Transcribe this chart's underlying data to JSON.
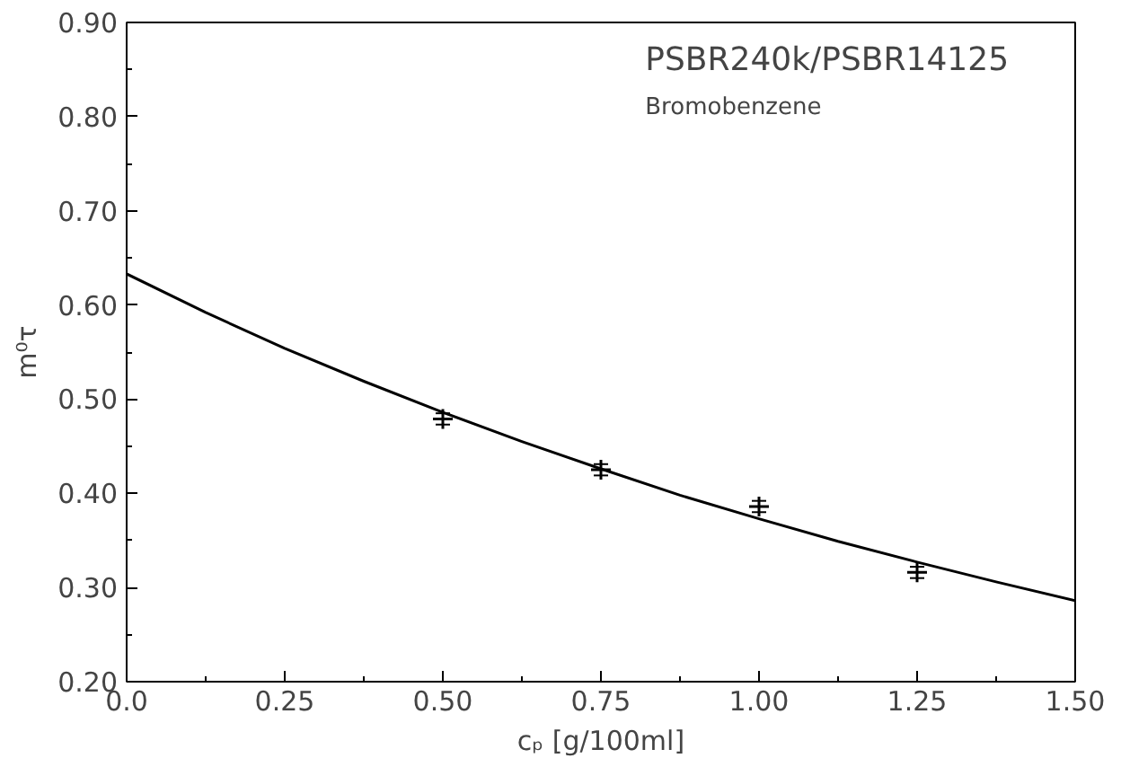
{
  "chart_data": {
    "type": "scatter",
    "xlabel": "cₚ [g/100ml]",
    "ylabel": "m⁰τ",
    "annotations": [
      "PSBR240k/PSBR14125",
      "Bromobenzene"
    ],
    "x": [
      0.5,
      0.75,
      1.0,
      1.25
    ],
    "series": [
      {
        "color": "#000000",
        "marker": "cross",
        "values": [
          0.479,
          0.425,
          0.386,
          0.316
        ],
        "errors": [
          0.006,
          0.006,
          0.006,
          0.006
        ]
      },
      {
        "type": "line",
        "color": "#000000",
        "line_style": "solid",
        "x": [
          0,
          0.125,
          0.25,
          0.375,
          0.5,
          0.625,
          0.75,
          0.875,
          1.0,
          1.125,
          1.25,
          1.375,
          1.5
        ],
        "values": [
          0.633,
          0.592,
          0.554,
          0.519,
          0.486,
          0.455,
          0.426,
          0.398,
          0.373,
          0.349,
          0.327,
          0.306,
          0.286
        ]
      }
    ],
    "xlim": [
      0,
      1.5
    ],
    "xticks": [
      {
        "value": 0,
        "label": "0.0"
      },
      0.25,
      {
        "value": 0.5,
        "label": "0.50"
      },
      0.75,
      {
        "value": 1,
        "label": "1.00"
      },
      1.25,
      {
        "value": 1.5,
        "label": "1.50"
      }
    ],
    "ylim": [
      0.2,
      0.9
    ],
    "yticks": [
      {
        "value": 0.2,
        "label": "0.20"
      },
      {
        "value": 0.3,
        "label": "0.30"
      },
      {
        "value": 0.4,
        "label": "0.40"
      },
      {
        "value": 0.5,
        "label": "0.50"
      },
      {
        "value": 0.6,
        "label": "0.60"
      },
      {
        "value": 0.7,
        "label": "0.70"
      },
      {
        "value": 0.8,
        "label": "0.80"
      },
      {
        "value": 0.9,
        "label": "0.90"
      }
    ],
    "grid": false
  }
}
